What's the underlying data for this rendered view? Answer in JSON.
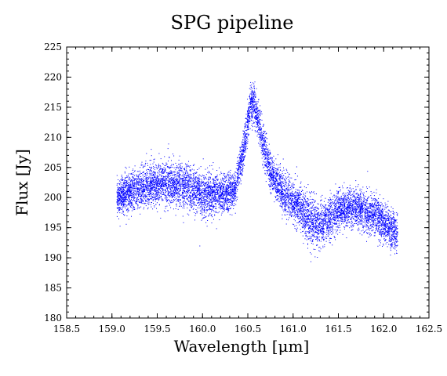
{
  "chart_data": {
    "type": "scatter",
    "title": "SPG pipeline",
    "xlabel": "Wavelength [μm]",
    "ylabel": "Flux [Jy]",
    "xlim": [
      158.5,
      162.5
    ],
    "ylim": [
      180,
      225
    ],
    "x_ticks": [
      "158.5",
      "159.0",
      "159.5",
      "160.0",
      "160.5",
      "161.0",
      "161.5",
      "162.0",
      "162.5"
    ],
    "y_ticks": [
      "180",
      "185",
      "190",
      "195",
      "200",
      "205",
      "210",
      "215",
      "220",
      "225"
    ],
    "grid": false,
    "legend": "none",
    "point_color": "#0000ff",
    "series": [
      {
        "x_range": [
          159.05,
          162.15
        ],
        "profile": [
          {
            "x": 159.05,
            "y": 200.0,
            "spread": 3.0
          },
          {
            "x": 159.2,
            "y": 201.0,
            "spread": 3.5
          },
          {
            "x": 159.4,
            "y": 202.0,
            "spread": 4.0
          },
          {
            "x": 159.6,
            "y": 202.5,
            "spread": 4.0
          },
          {
            "x": 159.8,
            "y": 202.0,
            "spread": 4.0
          },
          {
            "x": 160.0,
            "y": 200.5,
            "spread": 4.0
          },
          {
            "x": 160.2,
            "y": 200.5,
            "spread": 3.5
          },
          {
            "x": 160.35,
            "y": 201.0,
            "spread": 3.0
          },
          {
            "x": 160.45,
            "y": 208.0,
            "spread": 3.5
          },
          {
            "x": 160.53,
            "y": 216.0,
            "spread": 3.5
          },
          {
            "x": 160.58,
            "y": 215.0,
            "spread": 3.5
          },
          {
            "x": 160.65,
            "y": 210.0,
            "spread": 3.5
          },
          {
            "x": 160.75,
            "y": 204.0,
            "spread": 3.5
          },
          {
            "x": 160.9,
            "y": 200.5,
            "spread": 3.5
          },
          {
            "x": 161.05,
            "y": 199.0,
            "spread": 3.5
          },
          {
            "x": 161.2,
            "y": 196.0,
            "spread": 4.5
          },
          {
            "x": 161.3,
            "y": 195.5,
            "spread": 4.0
          },
          {
            "x": 161.5,
            "y": 198.0,
            "spread": 3.5
          },
          {
            "x": 161.7,
            "y": 198.5,
            "spread": 3.5
          },
          {
            "x": 161.9,
            "y": 197.0,
            "spread": 3.5
          },
          {
            "x": 162.15,
            "y": 194.0,
            "spread": 3.5
          }
        ]
      }
    ]
  }
}
